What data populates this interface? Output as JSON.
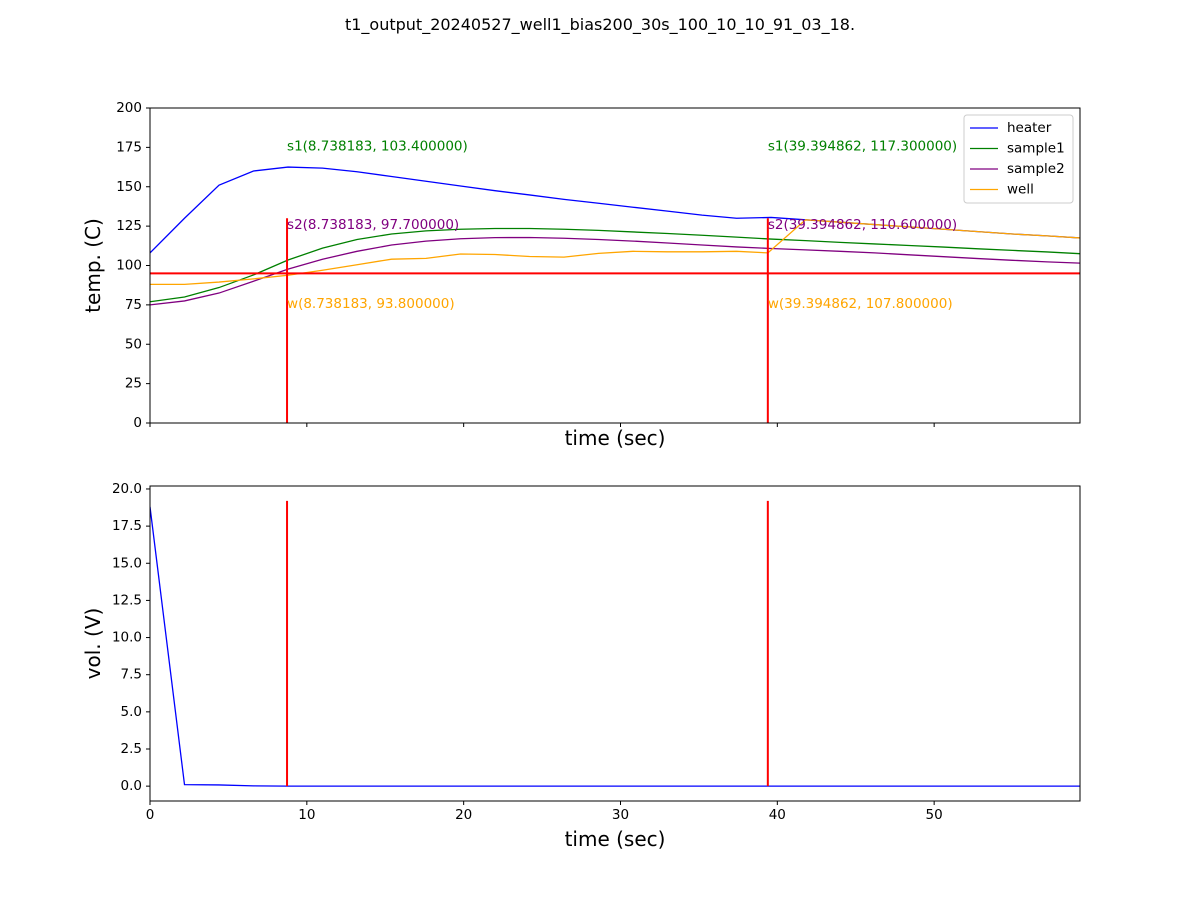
{
  "figure": {
    "title": "t1_output_20240527_well1_bias200_30s_100_10_10_91_03_18."
  },
  "colors": {
    "heater": "#0000ff",
    "sample1": "#008000",
    "sample2": "#800080",
    "well": "#ffa500",
    "marker": "#ff0000"
  },
  "chart_data": [
    {
      "type": "line",
      "xlabel": "time (sec)",
      "ylabel": "temp. (C)",
      "xlim": [
        0,
        59.3
      ],
      "ylim": [
        0,
        200
      ],
      "yticks": [
        0,
        25,
        50,
        75,
        100,
        125,
        150,
        175,
        200
      ],
      "xticks": [
        0,
        10,
        20,
        30,
        40,
        50
      ],
      "show_xtick_labels": false,
      "grid": false,
      "legend": "top-right",
      "hline": {
        "y": 95
      },
      "vlines": [
        {
          "x": 8.738183,
          "ymin": 0,
          "ymax": 130
        },
        {
          "x": 39.394862,
          "ymin": 0,
          "ymax": 130
        }
      ],
      "series": [
        {
          "name": "heater",
          "x": [
            0,
            2.2,
            4.4,
            6.6,
            8.8,
            11,
            13.2,
            15.4,
            17.6,
            19.8,
            22,
            24.2,
            26.4,
            28.6,
            30.8,
            33,
            35.2,
            37.4,
            39.6,
            41.8,
            44,
            46.2,
            48.4,
            50.6,
            52.8,
            55,
            57.2,
            59.3
          ],
          "values": [
            108,
            130,
            151,
            160,
            162.5,
            161.8,
            159.5,
            156.5,
            153.5,
            150.5,
            147.5,
            144.8,
            142,
            139.5,
            137,
            134.5,
            132,
            130,
            130.5,
            129,
            127.5,
            126,
            124.5,
            123,
            121.5,
            120,
            118.8,
            117.5
          ]
        },
        {
          "name": "sample1",
          "x": [
            0,
            2.2,
            4.4,
            6.6,
            8.8,
            11,
            13.2,
            15.4,
            17.6,
            19.8,
            22,
            24.2,
            26.4,
            28.6,
            30.8,
            33,
            35.2,
            37.4,
            39.6,
            41.8,
            44,
            46.2,
            48.4,
            50.6,
            52.8,
            55,
            57.2,
            59.3
          ],
          "values": [
            77,
            80,
            86,
            94,
            103.5,
            111,
            116.5,
            120,
            122,
            123,
            123.5,
            123.5,
            123,
            122.3,
            121.3,
            120.3,
            119.2,
            118,
            116.8,
            115.8,
            114.7,
            113.7,
            112.7,
            111.7,
            110.6,
            109.6,
            108.6,
            107.5
          ]
        },
        {
          "name": "sample2",
          "x": [
            0,
            2.2,
            4.4,
            6.6,
            8.8,
            11,
            13.2,
            15.4,
            17.6,
            19.8,
            22,
            24.2,
            26.4,
            28.6,
            30.8,
            33,
            35.2,
            37.4,
            39.6,
            41.8,
            44,
            46.2,
            48.4,
            50.6,
            52.8,
            55,
            57.2,
            59.3
          ],
          "values": [
            75,
            77.5,
            82.5,
            90,
            97.7,
            104,
            109,
            113,
            115.5,
            117,
            117.7,
            117.8,
            117.3,
            116.5,
            115.5,
            114.3,
            113,
            111.8,
            110.8,
            109.9,
            109,
            108,
            106.8,
            105.6,
            104.4,
            103.3,
            102.3,
            101.5
          ]
        },
        {
          "name": "well",
          "x": [
            0,
            2.2,
            4.4,
            6.6,
            8.8,
            11,
            13.2,
            15.4,
            17.6,
            19.8,
            22,
            24.2,
            26.4,
            28.6,
            30.8,
            33,
            35.2,
            37.4,
            39.4,
            41.8,
            44,
            46.2,
            48.4,
            50.6,
            52.8,
            55,
            57.2,
            59.3
          ],
          "values": [
            88,
            88,
            89.5,
            91.5,
            93.8,
            97,
            100.5,
            104,
            104.5,
            107.3,
            107,
            105.7,
            105.3,
            107.7,
            109,
            108.7,
            108.7,
            109,
            108,
            129,
            127.5,
            126,
            124.5,
            123,
            121.5,
            120,
            118.8,
            117.5
          ]
        }
      ],
      "annotations": [
        {
          "text": "s1(8.738183, 103.400000)",
          "x": 8.738183,
          "y": 175,
          "color": "sample1"
        },
        {
          "text": "s2(8.738183, 97.700000)",
          "x": 8.738183,
          "y": 125,
          "color": "sample2"
        },
        {
          "text": "w(8.738183, 93.800000)",
          "x": 8.738183,
          "y": 75,
          "color": "well"
        },
        {
          "text": "s1(39.394862, 117.300000)",
          "x": 39.394862,
          "y": 175,
          "color": "sample1"
        },
        {
          "text": "s2(39.394862, 110.600000)",
          "x": 39.394862,
          "y": 125,
          "color": "sample2"
        },
        {
          "text": "w(39.394862, 107.800000)",
          "x": 39.394862,
          "y": 75,
          "color": "well"
        }
      ]
    },
    {
      "type": "line",
      "xlabel": "time (sec)",
      "ylabel": "vol. (V)",
      "xlim": [
        0,
        59.3
      ],
      "ylim": [
        -1,
        20.2
      ],
      "yticks": [
        0.0,
        2.5,
        5.0,
        7.5,
        10.0,
        12.5,
        15.0,
        17.5,
        20.0
      ],
      "xticks": [
        0,
        10,
        20,
        30,
        40,
        50
      ],
      "show_xtick_labels": true,
      "grid": false,
      "vlines": [
        {
          "x": 8.738183,
          "ymin": 0,
          "ymax": 19.2
        },
        {
          "x": 39.394862,
          "ymin": 0,
          "ymax": 19.2
        }
      ],
      "series": [
        {
          "name": "heater",
          "x": [
            0,
            2.2,
            4.4,
            6.6,
            8.8,
            59.3
          ],
          "values": [
            18.8,
            0.1,
            0.08,
            0.02,
            0.0,
            0.0
          ]
        }
      ]
    }
  ]
}
